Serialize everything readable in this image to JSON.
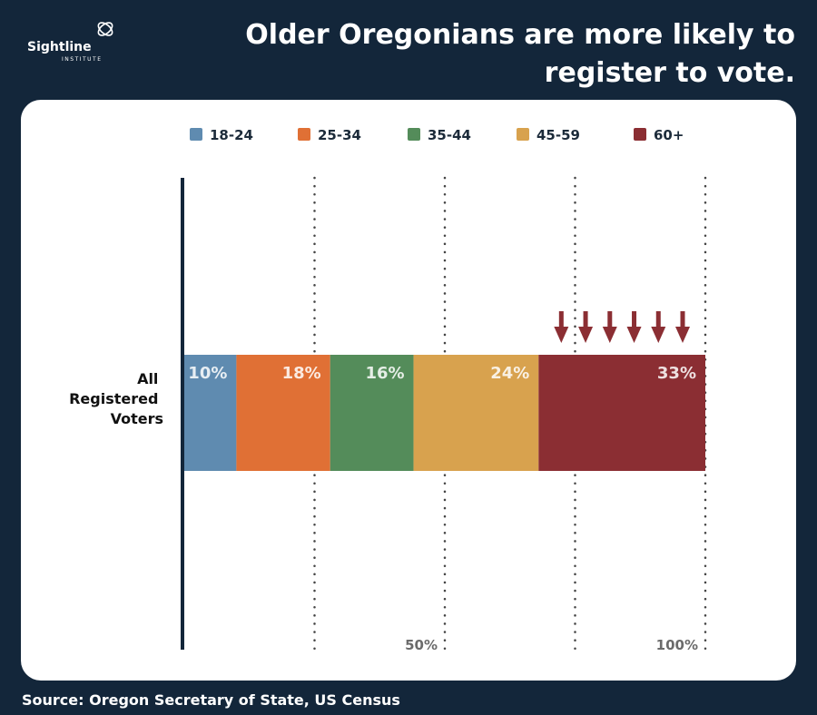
{
  "header": {
    "title": "Older Oregonians are more likely to register to vote.",
    "logo": {
      "name": "Sightline",
      "sub": "INSTITUTE"
    }
  },
  "source": "Source: Oregon Secretary of State, US Census",
  "colors": {
    "background": "#13263a",
    "panel": "#ffffff",
    "arrows": "#8b2e33",
    "axis": "#13263a",
    "gridlines": "#444444"
  },
  "chart_data": {
    "type": "bar",
    "orientation": "horizontal",
    "stacked": true,
    "categories": [
      "All Registered Voters"
    ],
    "series": [
      {
        "name": "18-24",
        "values": [
          10
        ],
        "label": "10%",
        "color": "#5f8bb0"
      },
      {
        "name": "25-34",
        "values": [
          18
        ],
        "label": "18%",
        "color": "#e07035"
      },
      {
        "name": "35-44",
        "values": [
          16
        ],
        "label": "16%",
        "color": "#548c5a"
      },
      {
        "name": "45-59",
        "values": [
          24
        ],
        "label": "24%",
        "color": "#d8a24e"
      },
      {
        "name": "60+",
        "values": [
          33
        ],
        "label": "33%",
        "color": "#8b2e33"
      }
    ],
    "xlim": [
      0,
      100
    ],
    "gridlines": [
      25,
      50,
      75,
      100
    ],
    "tick_labels": [
      {
        "value": 50,
        "label": "50%"
      },
      {
        "value": 100,
        "label": "100%"
      }
    ],
    "arrow_count": 6,
    "legend_position": "top"
  }
}
